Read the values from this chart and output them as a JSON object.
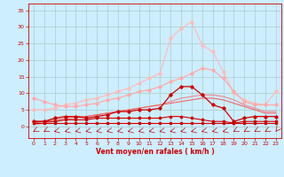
{
  "x": [
    0,
    1,
    2,
    3,
    4,
    5,
    6,
    7,
    8,
    9,
    10,
    11,
    12,
    13,
    14,
    15,
    16,
    17,
    18,
    19,
    20,
    21,
    22,
    23
  ],
  "lines": [
    {
      "y": [
        1.0,
        1.0,
        1.0,
        1.0,
        1.0,
        1.0,
        1.0,
        1.0,
        1.0,
        1.0,
        1.0,
        1.0,
        1.0,
        1.0,
        1.0,
        1.0,
        1.0,
        1.0,
        1.0,
        1.0,
        1.0,
        1.0,
        1.0,
        1.0
      ],
      "color": "#cc0000",
      "lw": 0.8,
      "marker": "s",
      "ms": 1.5,
      "zorder": 10
    },
    {
      "y": [
        1.5,
        1.5,
        1.5,
        2.0,
        2.0,
        2.0,
        2.5,
        2.5,
        2.5,
        2.5,
        2.5,
        2.5,
        2.5,
        3.0,
        3.0,
        2.5,
        2.0,
        1.5,
        1.5,
        1.0,
        1.5,
        1.5,
        1.5,
        1.5
      ],
      "color": "#cc0000",
      "lw": 0.8,
      "marker": "D",
      "ms": 1.5,
      "zorder": 10
    },
    {
      "y": [
        1.5,
        1.5,
        2.5,
        3.0,
        3.0,
        2.5,
        3.0,
        3.5,
        4.5,
        4.5,
        5.0,
        5.0,
        5.5,
        9.5,
        12.0,
        12.0,
        9.5,
        6.5,
        5.5,
        1.5,
        2.5,
        3.0,
        3.0,
        3.0
      ],
      "color": "#cc0000",
      "lw": 0.9,
      "marker": "D",
      "ms": 1.8,
      "zorder": 9
    },
    {
      "y": [
        1.0,
        1.5,
        2.0,
        2.5,
        3.0,
        3.0,
        3.5,
        4.0,
        4.5,
        5.0,
        5.5,
        6.0,
        6.5,
        7.0,
        7.5,
        8.0,
        8.5,
        8.5,
        8.0,
        7.0,
        6.0,
        5.0,
        4.0,
        4.0
      ],
      "color": "#ee6666",
      "lw": 0.8,
      "marker": null,
      "ms": 0,
      "zorder": 4
    },
    {
      "y": [
        0.5,
        1.0,
        1.5,
        2.0,
        2.5,
        3.0,
        3.5,
        4.0,
        4.5,
        5.0,
        5.5,
        6.0,
        6.5,
        7.5,
        8.5,
        9.0,
        9.5,
        9.5,
        9.0,
        8.0,
        6.5,
        5.5,
        4.5,
        4.5
      ],
      "color": "#ee8888",
      "lw": 0.8,
      "marker": null,
      "ms": 0,
      "zorder": 3
    },
    {
      "y": [
        8.5,
        7.5,
        6.5,
        6.0,
        6.0,
        6.5,
        7.0,
        8.0,
        8.5,
        9.5,
        10.5,
        11.0,
        12.0,
        13.5,
        14.5,
        16.0,
        17.5,
        17.0,
        14.5,
        10.5,
        7.5,
        6.5,
        6.5,
        6.5
      ],
      "color": "#ffaaaa",
      "lw": 0.9,
      "marker": "D",
      "ms": 1.8,
      "zorder": 2
    },
    {
      "y": [
        5.0,
        5.0,
        5.5,
        6.5,
        7.0,
        8.0,
        8.5,
        9.5,
        10.5,
        11.5,
        13.0,
        14.5,
        16.0,
        26.5,
        29.5,
        31.5,
        24.5,
        22.5,
        16.5,
        10.0,
        8.0,
        7.0,
        6.5,
        10.5
      ],
      "color": "#ffbbbb",
      "lw": 0.9,
      "marker": "D",
      "ms": 1.8,
      "zorder": 1
    }
  ],
  "arrow_angles": [
    225,
    225,
    247,
    247,
    247,
    247,
    247,
    247,
    247,
    247,
    247,
    247,
    247,
    247,
    247,
    247,
    247,
    247,
    247,
    225,
    225,
    225,
    225,
    202
  ],
  "bg_color": "#cceeff",
  "grid_color": "#aacccc",
  "tick_color": "#cc0000",
  "xlabel": "Vent moyen/en rafales ( km/h )",
  "xlim": [
    -0.5,
    23.5
  ],
  "ylim": [
    -3.5,
    37
  ],
  "yticks": [
    0,
    5,
    10,
    15,
    20,
    25,
    30,
    35
  ],
  "xticks": [
    0,
    1,
    2,
    3,
    4,
    5,
    6,
    7,
    8,
    9,
    10,
    11,
    12,
    13,
    14,
    15,
    16,
    17,
    18,
    19,
    20,
    21,
    22,
    23
  ]
}
